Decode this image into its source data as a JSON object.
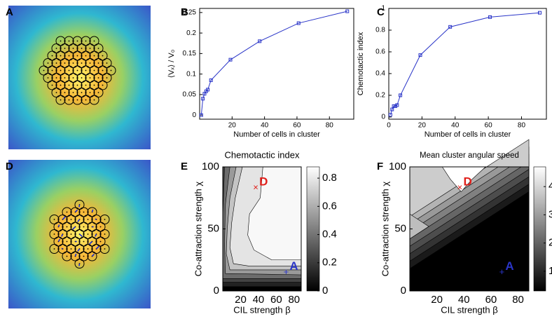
{
  "chart_data": [
    {
      "type": "image",
      "panel": "A"
    },
    {
      "type": "line",
      "panel": "B",
      "xlabel": "Number of cells in cluster",
      "ylabel": "⟨Vₓ⟩ / V₀",
      "x": [
        1,
        2,
        3,
        4,
        5,
        7,
        19,
        37,
        61,
        91
      ],
      "values": [
        0.0,
        0.04,
        0.052,
        0.058,
        0.062,
        0.085,
        0.135,
        0.18,
        0.224,
        0.253
      ],
      "color": "#2a35c8",
      "xlim": [
        0,
        95
      ],
      "xticks": [
        20,
        40,
        60,
        80
      ],
      "ylim": [
        -0.01,
        0.26
      ],
      "yticks": [
        0,
        0.05,
        0.1,
        0.15,
        0.2,
        0.25
      ]
    },
    {
      "type": "line",
      "panel": "C",
      "xlabel": "Number of cells in cluster",
      "ylabel": "Chemotactic index",
      "x": [
        1,
        2,
        3,
        4,
        5,
        7,
        19,
        37,
        61,
        91
      ],
      "values": [
        0.02,
        0.07,
        0.1,
        0.1,
        0.11,
        0.2,
        0.57,
        0.83,
        0.92,
        0.96
      ],
      "color": "#2a35c8",
      "xlim": [
        0,
        95
      ],
      "xticks": [
        0,
        20,
        40,
        60,
        80
      ],
      "ylim": [
        -0.02,
        1.0
      ],
      "yticks": [
        0,
        0.2,
        0.4,
        0.6,
        0.8,
        1
      ]
    },
    {
      "type": "image",
      "panel": "D"
    },
    {
      "type": "contour",
      "panel": "E",
      "title": "Chemotactic index",
      "xlabel": "CIL strength β",
      "ylabel": "Co-attraction strength χ",
      "xlim": [
        0,
        88
      ],
      "xticks": [
        20,
        40,
        60,
        80
      ],
      "ylim": [
        0,
        100
      ],
      "yticks": [
        0,
        50,
        100
      ],
      "colorbar": {
        "lim": [
          0,
          0.88
        ],
        "ticks": [
          0,
          0.2,
          0.4,
          0.6,
          0.8
        ]
      },
      "annotations": [
        {
          "text": "D",
          "x": 37,
          "y": 83,
          "marker": "×",
          "color": "#e0201b"
        },
        {
          "text": "A",
          "x": 71,
          "y": 15,
          "marker": "+",
          "color": "#2a35c8"
        }
      ]
    },
    {
      "type": "contour",
      "panel": "F",
      "title": "Mean cluster angular speed",
      "xlabel": "CIL strength β",
      "ylabel": "Co-attraction strength χ",
      "xlim": [
        0,
        88
      ],
      "xticks": [
        20,
        40,
        60,
        80
      ],
      "ylim": [
        0,
        100
      ],
      "yticks": [
        0,
        50,
        100
      ],
      "colorbar": {
        "lim": [
          0.3,
          4.7
        ],
        "ticks": [
          1,
          2,
          3,
          4
        ]
      },
      "annotations": [
        {
          "text": "D",
          "x": 37,
          "y": 83,
          "marker": "×",
          "color": "#e0201b"
        },
        {
          "text": "A",
          "x": 68,
          "y": 15,
          "marker": "+",
          "color": "#2a35c8"
        }
      ]
    }
  ]
}
